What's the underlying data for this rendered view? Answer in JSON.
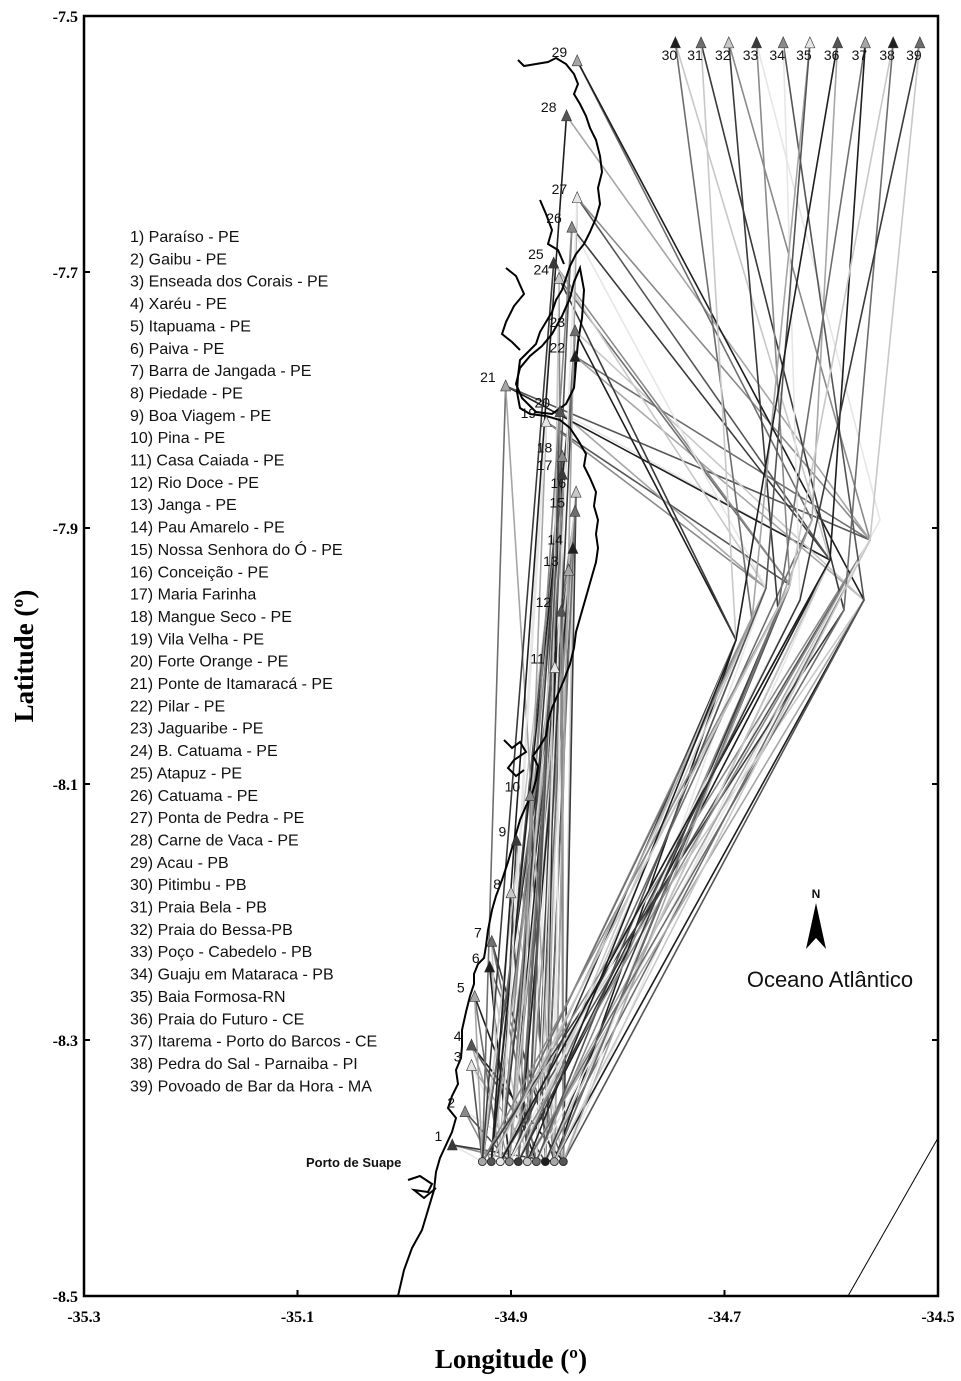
{
  "axes": {
    "xlabel": "Longitude (º)",
    "ylabel": "Latitude (º)",
    "xlim": [
      -35.3,
      -34.5
    ],
    "ylim": [
      -8.5,
      -7.5
    ],
    "xticks": [
      "-35.3",
      "-35.1",
      "-34.9",
      "-34.7",
      "-34.5"
    ],
    "yticks": [
      "-7.5",
      "-7.7",
      "-7.9",
      "-8.1",
      "-8.3",
      "-8.5"
    ]
  },
  "map": {
    "port_label": "Porto de Suape",
    "ocean_label": "Oceano Atlântico",
    "north_label": "N"
  },
  "colors": {
    "coast": "#000000",
    "route_palette": [
      "#e6e6e6",
      "#c8c8c8",
      "#a6a6a6",
      "#8a8a8a",
      "#6e6e6e",
      "#555555",
      "#3a3a3a",
      "#1e1e1e"
    ]
  },
  "legend": [
    "1) Paraíso - PE",
    "2) Gaibu - PE",
    "3) Enseada dos Corais - PE",
    "4) Xaréu - PE",
    "5) Itapuama - PE",
    "6) Paiva - PE",
    "7) Barra de Jangada - PE",
    "8) Piedade - PE",
    "9) Boa Viagem - PE",
    "10) Pina - PE",
    "11) Casa Caiada - PE",
    "12) Rio Doce - PE",
    "13) Janga - PE",
    "14) Pau Amarelo - PE",
    "15) Nossa Senhora do Ó - PE",
    "16) Conceição - PE",
    "17) Maria Farinha",
    "18) Mangue Seco - PE",
    "19) Vila Velha - PE",
    "20) Forte Orange - PE",
    "21) Ponte de Itamaracá - PE",
    "22) Pilar - PE",
    "23) Jaguaribe - PE",
    "24) B. Catuama - PE",
    "25) Atapuz - PE",
    "26) Catuama - PE",
    "27) Ponta de Pedra - PE",
    "28) Carne de Vaca - PE",
    "29) Acau - PB",
    "30) Pitimbu - PB",
    "31) Praia Bela - PB",
    "32) Praia do Bessa-PB",
    "33) Poço - Cabedelo - PB",
    "34) Guaju em Mataraca - PB",
    "35) Baia Formosa-RN",
    "36) Praia do Futuro - CE",
    "37) Itarema - Porto do Barcos - CE",
    "38) Pedra do Sal - Parnaiba - PI",
    "39) Povoado de Bar da Hora - MA"
  ],
  "chart_data": {
    "type": "map",
    "xlim": [
      -35.3,
      -34.5
    ],
    "ylim": [
      -8.5,
      -7.5
    ],
    "port": {
      "lon": -34.895,
      "lat": -8.395
    },
    "sites": [
      {
        "n": "1",
        "lon": -34.955,
        "lat": -8.382
      },
      {
        "n": "2",
        "lon": -34.943,
        "lat": -8.356
      },
      {
        "n": "3",
        "lon": -34.937,
        "lat": -8.32
      },
      {
        "n": "4",
        "lon": -34.937,
        "lat": -8.304
      },
      {
        "n": "5",
        "lon": -34.934,
        "lat": -8.266
      },
      {
        "n": "6",
        "lon": -34.92,
        "lat": -8.243
      },
      {
        "n": "7",
        "lon": -34.918,
        "lat": -8.223
      },
      {
        "n": "8",
        "lon": -34.9,
        "lat": -8.185
      },
      {
        "n": "9",
        "lon": -34.895,
        "lat": -8.144
      },
      {
        "n": "10",
        "lon": -34.882,
        "lat": -8.109
      },
      {
        "n": "11",
        "lon": -34.859,
        "lat": -8.009
      },
      {
        "n": "12",
        "lon": -34.853,
        "lat": -7.965
      },
      {
        "n": "13",
        "lon": -34.846,
        "lat": -7.933
      },
      {
        "n": "14",
        "lon": -34.842,
        "lat": -7.916
      },
      {
        "n": "15",
        "lon": -34.84,
        "lat": -7.887
      },
      {
        "n": "16",
        "lon": -34.839,
        "lat": -7.872
      },
      {
        "n": "17",
        "lon": -34.852,
        "lat": -7.858
      },
      {
        "n": "18",
        "lon": -34.852,
        "lat": -7.844
      },
      {
        "n": "19",
        "lon": -34.867,
        "lat": -7.817
      },
      {
        "n": "20",
        "lon": -34.854,
        "lat": -7.809
      },
      {
        "n": "21",
        "lon": -34.905,
        "lat": -7.789
      },
      {
        "n": "22",
        "lon": -34.84,
        "lat": -7.766
      },
      {
        "n": "23",
        "lon": -34.84,
        "lat": -7.746
      },
      {
        "n": "24",
        "lon": -34.855,
        "lat": -7.705
      },
      {
        "n": "25",
        "lon": -34.86,
        "lat": -7.693
      },
      {
        "n": "26",
        "lon": -34.843,
        "lat": -7.665
      },
      {
        "n": "27",
        "lon": -34.838,
        "lat": -7.642
      },
      {
        "n": "28",
        "lon": -34.848,
        "lat": -7.578
      },
      {
        "n": "29",
        "lon": -34.838,
        "lat": -7.535
      },
      {
        "n": "30",
        "lon": -34.746,
        "lat": -7.521
      },
      {
        "n": "31",
        "lon": -34.722,
        "lat": -7.521
      },
      {
        "n": "32",
        "lon": -34.696,
        "lat": -7.521
      },
      {
        "n": "33",
        "lon": -34.67,
        "lat": -7.521
      },
      {
        "n": "34",
        "lon": -34.645,
        "lat": -7.521
      },
      {
        "n": "35",
        "lon": -34.62,
        "lat": -7.521
      },
      {
        "n": "36",
        "lon": -34.594,
        "lat": -7.521
      },
      {
        "n": "37",
        "lon": -34.568,
        "lat": -7.521
      },
      {
        "n": "38",
        "lon": -34.542,
        "lat": -7.521
      },
      {
        "n": "39",
        "lon": -34.517,
        "lat": -7.521
      }
    ]
  }
}
